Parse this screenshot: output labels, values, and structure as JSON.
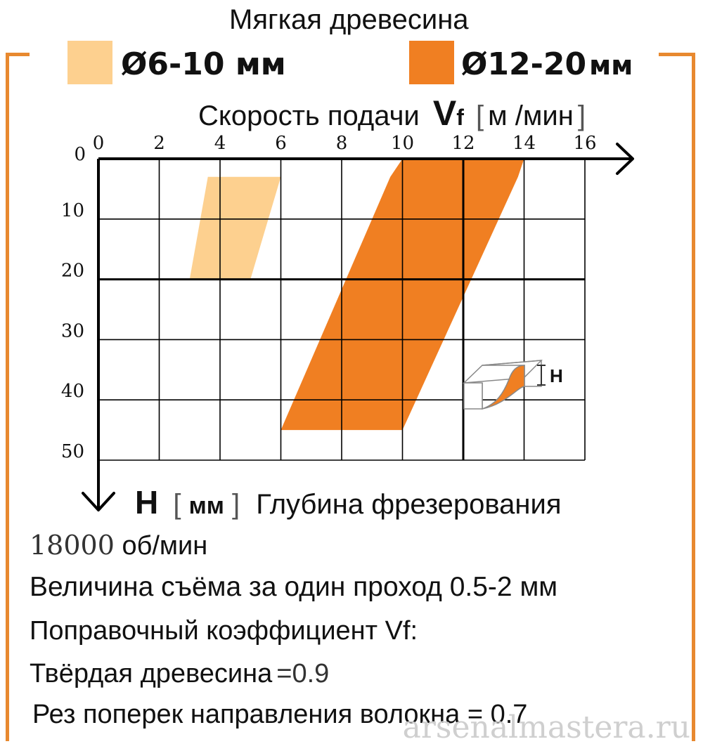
{
  "title": "Мягкая древесина",
  "legend": [
    {
      "label": "Ø6-10 мм",
      "color": "#fdd08f"
    },
    {
      "label": "Ø12-20",
      "unit": "мм",
      "color": "#f07f22"
    }
  ],
  "axis_title": {
    "x_prefix": "Скорость подачи",
    "x_symbol": "V",
    "x_subscript": "f",
    "x_unit_open": "[",
    "x_unit": "м /мин",
    "x_unit_close": "]",
    "y_symbol": "H",
    "y_unit_open": "[",
    "y_unit": "мм",
    "y_unit_close": "]",
    "y_name": "Глубина фрезерования"
  },
  "chart_data": {
    "type": "area",
    "x_axis": {
      "label": "Скорость подачи Vf [м /мин]",
      "ticks": [
        0,
        2,
        4,
        6,
        8,
        10,
        12,
        14,
        16
      ],
      "range": [
        0,
        16
      ],
      "position": "top"
    },
    "y_axis": {
      "label": "H [мм] Глубина фрезерования",
      "ticks": [
        0,
        10,
        20,
        30,
        40,
        50
      ],
      "range": [
        0,
        50
      ],
      "inverted": true
    },
    "grid": true,
    "series": [
      {
        "name": "Ø6-10 мм",
        "color": "#fdd08f",
        "polygon": [
          {
            "x": 3.6,
            "y": 3
          },
          {
            "x": 6.0,
            "y": 3
          },
          {
            "x": 5.0,
            "y": 20
          },
          {
            "x": 3.0,
            "y": 20
          }
        ]
      },
      {
        "name": "Ø12-20 мм",
        "color": "#f07f22",
        "polygon": [
          {
            "x": 10.0,
            "y": 0
          },
          {
            "x": 14.0,
            "y": 0
          },
          {
            "x": 13.8,
            "y": 3
          },
          {
            "x": 10.0,
            "y": 45
          },
          {
            "x": 6.0,
            "y": 45
          },
          {
            "x": 9.6,
            "y": 3
          }
        ]
      }
    ],
    "annotations": [
      {
        "text": "H",
        "description": "workpiece profile sketch"
      }
    ]
  },
  "info": {
    "rpm_value": "18000",
    "rpm_unit": "об/мин",
    "removal": "Величина съёма за один проход 0.5-2 мм",
    "correction_title": "Поправочный коэффициент Vf:",
    "hard_wood_label": "Твёрдая древесина",
    "hard_wood_eq": "=0.9",
    "cross_grain": "Рез поперек направления волокна = 0.7"
  },
  "watermark": "arsenalmastera.ru",
  "colors": {
    "frame": "#e8892f",
    "light_orange": "#fdd08f",
    "dark_orange": "#f07f22"
  }
}
